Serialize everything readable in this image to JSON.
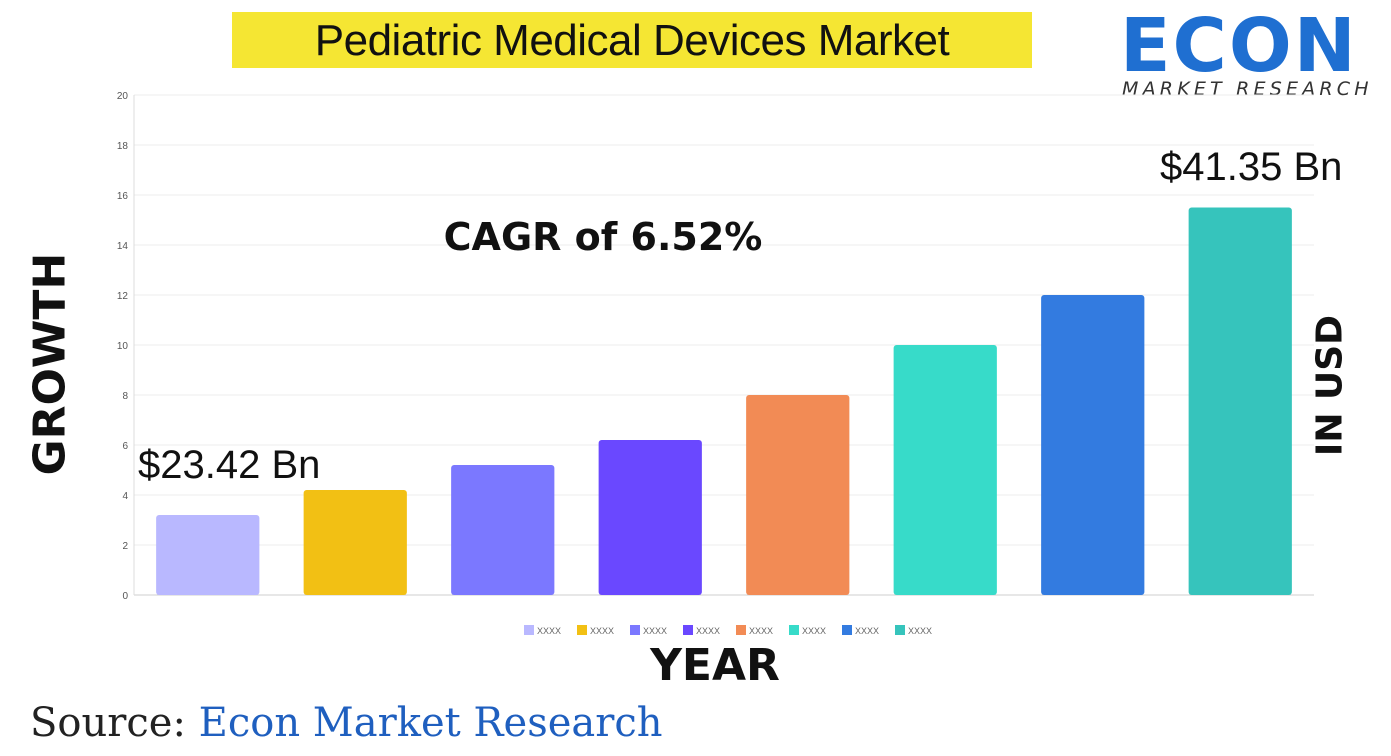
{
  "header": {
    "title": "Pediatric Medical Devices Market"
  },
  "logo": {
    "word": "ECON",
    "subtitle": "MARKET RESEARCH"
  },
  "annotations": {
    "cagr": "CAGR of 6.52%",
    "start_value": "$23.42 Bn",
    "end_value": "$41.35 Bn"
  },
  "axis_titles": {
    "y_left": "GROWTH",
    "y_right": "IN USD",
    "x": "YEAR"
  },
  "source": {
    "prefix": "Source:",
    "name": "Econ Market Research"
  },
  "chart_data": {
    "type": "bar",
    "categories": [
      "XXXX",
      "XXXX",
      "XXXX",
      "XXXX",
      "XXXX",
      "XXXX",
      "XXXX",
      "XXXX"
    ],
    "values": [
      3.2,
      4.2,
      5.2,
      6.2,
      8.0,
      10.0,
      12.0,
      15.5
    ],
    "colors": [
      "#b9b8ff",
      "#f2c014",
      "#7b78ff",
      "#6a48ff",
      "#f28b55",
      "#37dbc9",
      "#337be0",
      "#36c4bc"
    ],
    "ylim": [
      0,
      20
    ],
    "yticks": [
      0,
      2,
      4,
      6,
      8,
      10,
      12,
      14,
      16,
      18,
      20
    ],
    "grid": true,
    "legend": "bottom",
    "xlabel": "YEAR",
    "ylabel": "GROWTH"
  }
}
